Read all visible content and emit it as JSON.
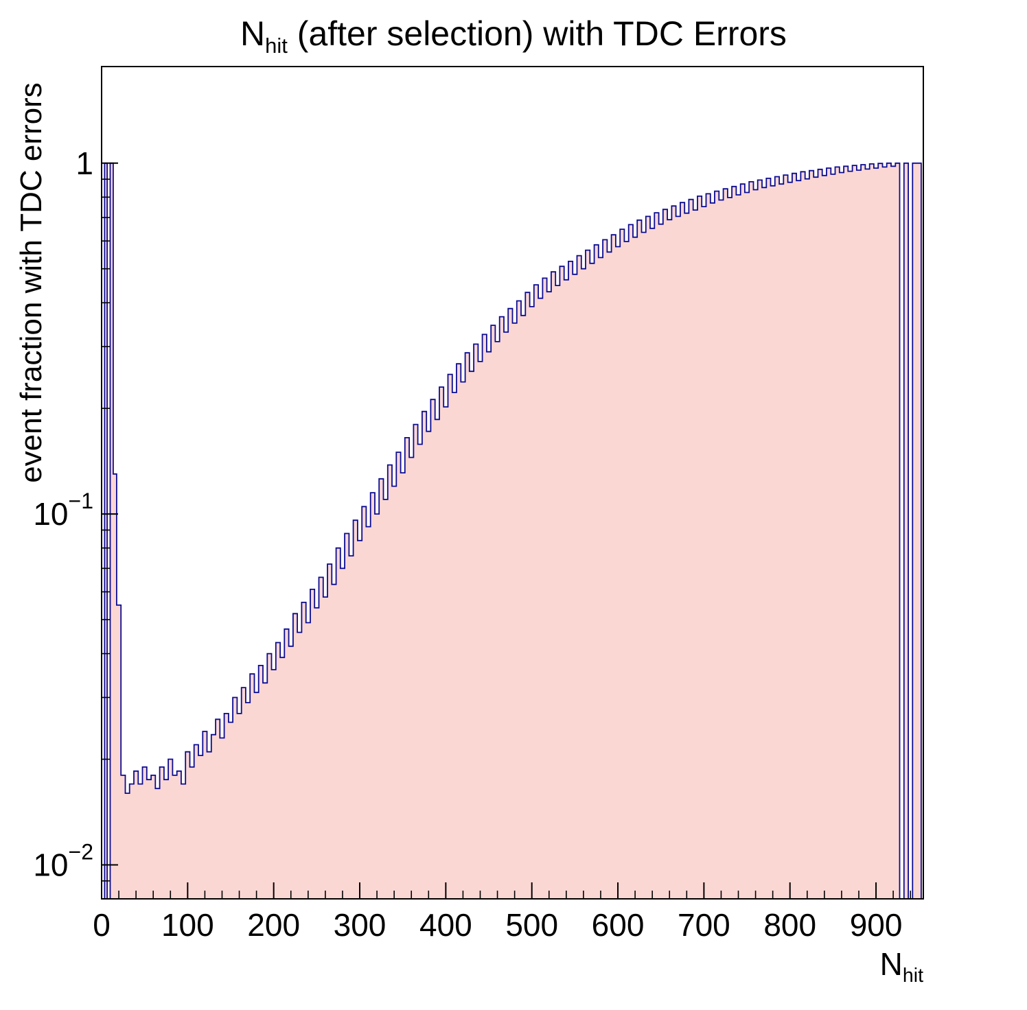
{
  "title": {
    "prefix": "N",
    "subscript": "hit",
    "rest": " (after selection) with TDC Errors"
  },
  "y_axis": {
    "label": "event fraction with TDC errors",
    "scale": "log",
    "ticks": [
      {
        "value": 0.01,
        "base": "10",
        "exp": "−2"
      },
      {
        "value": 0.1,
        "base": "10",
        "exp": "−1"
      },
      {
        "value": 1,
        "base": "1",
        "exp": ""
      }
    ]
  },
  "x_axis": {
    "label_prefix": "N",
    "label_subscript": "hit",
    "major_step": 100,
    "minor_step": 20,
    "ticks": [
      {
        "value": 0,
        "label": "0"
      },
      {
        "value": 100,
        "label": "100"
      },
      {
        "value": 200,
        "label": "200"
      },
      {
        "value": 300,
        "label": "300"
      },
      {
        "value": 400,
        "label": "400"
      },
      {
        "value": 500,
        "label": "500"
      },
      {
        "value": 600,
        "label": "600"
      },
      {
        "value": 700,
        "label": "700"
      },
      {
        "value": 800,
        "label": "800"
      },
      {
        "value": 900,
        "label": "900"
      }
    ]
  },
  "chart_data": {
    "type": "bar",
    "style": "step-histogram-filled",
    "title": "N_hit (after selection) with TDC Errors",
    "xlabel": "N_hit",
    "ylabel": "event fraction with TDC errors",
    "xlim": [
      0,
      955
    ],
    "ylim": [
      0.008,
      1.885
    ],
    "y_scale": "log",
    "grid": false,
    "legend": "none",
    "line_color": "#0b0b91",
    "fill_color": "#fbd7d4",
    "frame_color": "#000000",
    "x": [
      2,
      5,
      8,
      12,
      15,
      20,
      25,
      30,
      35,
      40,
      45,
      50,
      55,
      60,
      65,
      70,
      75,
      80,
      85,
      90,
      95,
      100,
      105,
      110,
      115,
      120,
      125,
      130,
      135,
      140,
      145,
      150,
      155,
      160,
      165,
      170,
      175,
      180,
      185,
      190,
      195,
      200,
      205,
      210,
      215,
      220,
      225,
      230,
      235,
      240,
      245,
      250,
      255,
      260,
      265,
      270,
      275,
      280,
      285,
      290,
      295,
      300,
      305,
      310,
      315,
      320,
      325,
      330,
      335,
      340,
      345,
      350,
      355,
      360,
      365,
      370,
      375,
      380,
      385,
      390,
      395,
      400,
      405,
      410,
      415,
      420,
      425,
      430,
      435,
      440,
      445,
      450,
      455,
      460,
      465,
      470,
      475,
      480,
      485,
      490,
      495,
      500,
      505,
      510,
      515,
      520,
      525,
      530,
      535,
      540,
      545,
      550,
      555,
      560,
      565,
      570,
      575,
      580,
      585,
      590,
      595,
      600,
      605,
      610,
      615,
      620,
      625,
      630,
      635,
      640,
      645,
      650,
      655,
      660,
      665,
      670,
      675,
      680,
      685,
      690,
      695,
      700,
      705,
      710,
      715,
      720,
      725,
      730,
      735,
      740,
      745,
      750,
      755,
      760,
      765,
      770,
      775,
      780,
      785,
      790,
      795,
      800,
      805,
      810,
      815,
      820,
      825,
      830,
      835,
      840,
      845,
      850,
      855,
      860,
      865,
      870,
      875,
      880,
      885,
      890,
      895,
      900,
      905,
      910,
      915,
      920,
      925,
      930,
      935,
      940,
      945,
      950
    ],
    "y": [
      0.004,
      1.0,
      0.004,
      1.0,
      0.13,
      0.055,
      0.018,
      0.016,
      0.017,
      0.0185,
      0.017,
      0.019,
      0.0175,
      0.018,
      0.0165,
      0.019,
      0.0175,
      0.02,
      0.018,
      0.0185,
      0.017,
      0.021,
      0.019,
      0.022,
      0.0205,
      0.024,
      0.021,
      0.0235,
      0.026,
      0.023,
      0.027,
      0.0255,
      0.03,
      0.027,
      0.032,
      0.029,
      0.035,
      0.031,
      0.037,
      0.033,
      0.04,
      0.036,
      0.043,
      0.039,
      0.047,
      0.042,
      0.052,
      0.046,
      0.056,
      0.049,
      0.061,
      0.054,
      0.066,
      0.058,
      0.072,
      0.063,
      0.08,
      0.07,
      0.088,
      0.076,
      0.096,
      0.084,
      0.105,
      0.092,
      0.115,
      0.1,
      0.126,
      0.11,
      0.138,
      0.12,
      0.15,
      0.131,
      0.165,
      0.145,
      0.18,
      0.158,
      0.196,
      0.172,
      0.212,
      0.186,
      0.23,
      0.202,
      0.25,
      0.222,
      0.268,
      0.238,
      0.288,
      0.255,
      0.305,
      0.272,
      0.325,
      0.29,
      0.345,
      0.31,
      0.365,
      0.33,
      0.385,
      0.35,
      0.405,
      0.368,
      0.428,
      0.39,
      0.45,
      0.412,
      0.47,
      0.43,
      0.49,
      0.448,
      0.508,
      0.465,
      0.525,
      0.482,
      0.545,
      0.5,
      0.565,
      0.518,
      0.585,
      0.538,
      0.605,
      0.558,
      0.625,
      0.578,
      0.648,
      0.598,
      0.668,
      0.615,
      0.688,
      0.635,
      0.705,
      0.652,
      0.722,
      0.67,
      0.738,
      0.69,
      0.755,
      0.705,
      0.772,
      0.72,
      0.788,
      0.735,
      0.805,
      0.752,
      0.818,
      0.77,
      0.832,
      0.785,
      0.845,
      0.798,
      0.858,
      0.812,
      0.872,
      0.825,
      0.885,
      0.84,
      0.895,
      0.852,
      0.905,
      0.862,
      0.915,
      0.872,
      0.925,
      0.882,
      0.935,
      0.892,
      0.945,
      0.902,
      0.952,
      0.912,
      0.96,
      0.922,
      0.968,
      0.93,
      0.975,
      0.94,
      0.98,
      0.948,
      0.985,
      0.955,
      0.99,
      0.962,
      0.995,
      0.968,
      0.998,
      0.975,
      1.0,
      0.98,
      1.0,
      0.004,
      1.0,
      0.004,
      1.0,
      1.0
    ]
  }
}
